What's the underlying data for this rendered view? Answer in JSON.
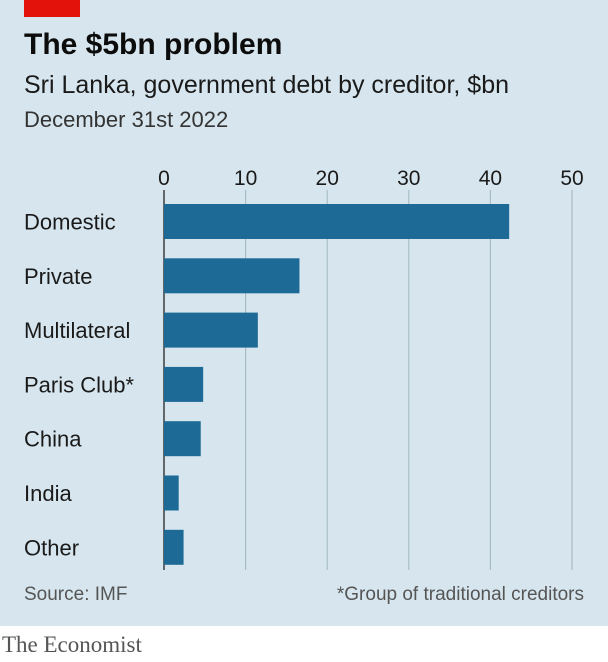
{
  "header": {
    "title": "The $5bn problem",
    "subtitle": "Sri Lanka, government debt by creditor, $bn",
    "date": "December 31st 2022"
  },
  "footer": {
    "source": "Source: IMF",
    "footnote": "*Group of traditional creditors",
    "brand": "The Economist"
  },
  "colors": {
    "bar": "#1d6a96",
    "background": "#d7e6ee",
    "accent": "#e3120b"
  },
  "chart_data": {
    "type": "bar",
    "orientation": "horizontal",
    "categories": [
      "Domestic",
      "Private",
      "Multilateral",
      "Paris Club*",
      "China",
      "India",
      "Other"
    ],
    "values": [
      42.3,
      16.6,
      11.5,
      4.8,
      4.5,
      1.8,
      2.4
    ],
    "xlim": [
      0,
      50
    ],
    "ticks": [
      0,
      10,
      20,
      30,
      40,
      50
    ],
    "tick_labels": [
      "0",
      "10",
      "20",
      "30",
      "40",
      "50"
    ],
    "grid": true,
    "axis_position": "top",
    "title": "The $5bn problem",
    "subtitle": "Sri Lanka, government debt by creditor, $bn"
  }
}
